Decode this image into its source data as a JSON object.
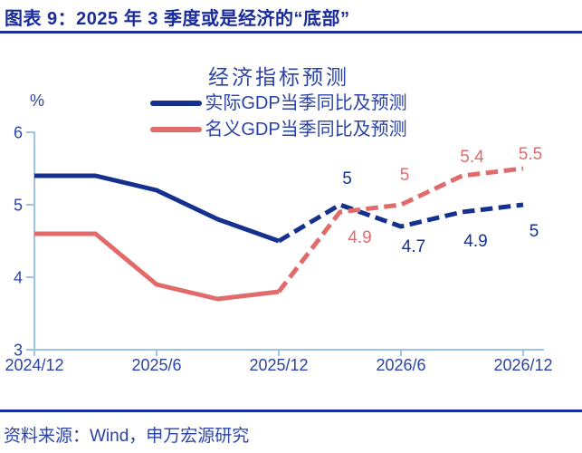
{
  "colors": {
    "navy": "#1A2C9C",
    "textblue": "#2A43A8",
    "axis": "#9DC3E6"
  },
  "header": {
    "title": "图表 9：2025 年 3 季度或是经济的“底部”"
  },
  "footer": {
    "source": "资料来源：Wind，申万宏源研究"
  },
  "chart_data": {
    "type": "line",
    "title": "经济指标预测",
    "xlabel": "",
    "ylabel": "%",
    "ylim": [
      3,
      6
    ],
    "y_ticks": [
      3,
      4,
      5,
      6
    ],
    "grid": false,
    "legend_position": "top",
    "x": [
      "2024/12",
      "2025/3",
      "2025/6",
      "2025/9",
      "2025/12",
      "2026/3",
      "2026/6",
      "2026/9",
      "2026/12"
    ],
    "x_tick_labels": [
      "2024/12",
      "2025/6",
      "2025/12",
      "2026/6",
      "2026/12"
    ],
    "x_tick_positions": [
      0,
      2,
      4,
      6,
      8
    ],
    "forecast_from_index": 4,
    "series": [
      {
        "id": "real-gdp",
        "name": "实际GDP当季同比及预测",
        "color": "#14318F",
        "values": [
          5.4,
          5.4,
          5.2,
          4.8,
          4.5,
          5.0,
          4.7,
          4.9,
          5.0
        ],
        "point_labels": [
          {
            "i": 5,
            "text": "5",
            "dx": 8,
            "dy": -23
          },
          {
            "i": 6,
            "text": "4.7",
            "dx": 14,
            "dy": 28
          },
          {
            "i": 7,
            "text": "4.9",
            "dx": 15,
            "dy": 38
          },
          {
            "i": 8,
            "text": "5",
            "dx": 12,
            "dy": 35
          }
        ]
      },
      {
        "id": "nominal-gdp",
        "name": "名义GDP当季同比及预测",
        "color": "#E16A6B",
        "values": [
          4.6,
          4.6,
          3.9,
          3.7,
          3.8,
          4.9,
          5.0,
          5.4,
          5.5
        ],
        "point_labels": [
          {
            "i": 5,
            "text": "4.9",
            "dx": 22,
            "dy": 34
          },
          {
            "i": 6,
            "text": "5",
            "dx": 4,
            "dy": -27
          },
          {
            "i": 7,
            "text": "5.4",
            "dx": 11,
            "dy": -15
          },
          {
            "i": 8,
            "text": "5.5",
            "dx": 8,
            "dy": -10
          }
        ]
      }
    ]
  }
}
